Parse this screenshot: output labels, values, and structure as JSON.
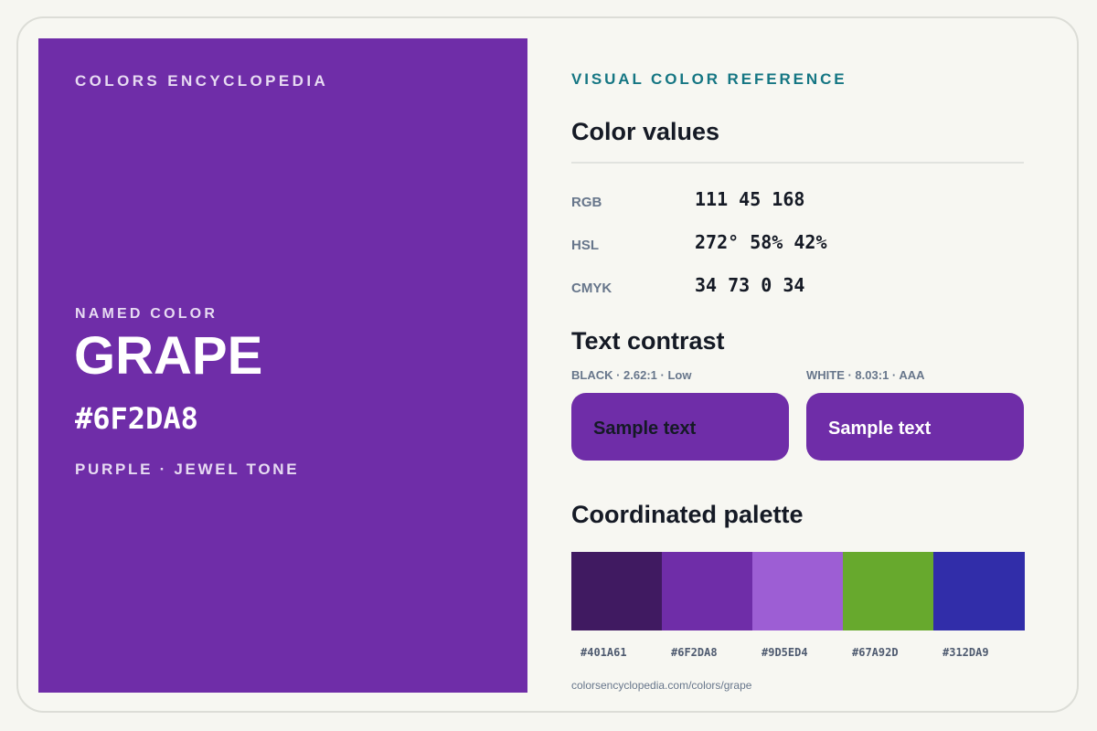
{
  "brand": "COLORS ENCYCLOPEDIA",
  "color": {
    "category_label": "NAMED COLOR",
    "name": "GRAPE",
    "hex": "#6F2DA8",
    "family": "PURPLE · JEWEL TONE",
    "swatch_color": "#6f2da8"
  },
  "reference": {
    "kicker": "VISUAL COLOR REFERENCE",
    "values_title": "Color values",
    "values": [
      {
        "label": "RGB",
        "value": "111 45 168"
      },
      {
        "label": "HSL",
        "value": "272° 58% 42%"
      },
      {
        "label": "CMYK",
        "value": "34 73 0 34"
      }
    ]
  },
  "contrast": {
    "title": "Text contrast",
    "samples": [
      {
        "label": "BLACK · 2.62:1 · Low",
        "text": "Sample text",
        "text_color": "#151a25"
      },
      {
        "label": "WHITE · 8.03:1 · AAA",
        "text": "Sample text",
        "text_color": "#ffffff"
      }
    ]
  },
  "palette": {
    "title": "Coordinated palette",
    "swatches": [
      {
        "hex": "#401A61",
        "color": "#401a61"
      },
      {
        "hex": "#6F2DA8",
        "color": "#6f2da8"
      },
      {
        "hex": "#9D5ED4",
        "color": "#9d5ed4"
      },
      {
        "hex": "#67A92D",
        "color": "#67a92d"
      },
      {
        "hex": "#312DA9",
        "color": "#312da9"
      }
    ]
  },
  "source_url": "colorsencyclopedia.com/colors/grape"
}
